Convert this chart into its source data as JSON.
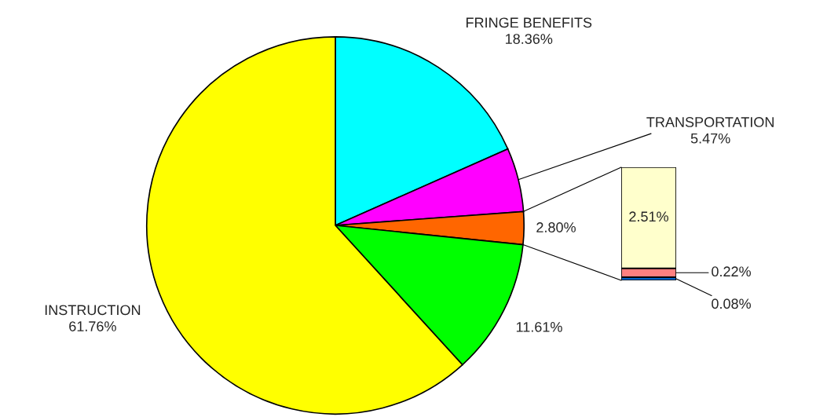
{
  "chart_data": [
    {
      "type": "pie",
      "categories": [
        "FRINGE BENEFITS",
        "TRANSPORTATION",
        null,
        null,
        "INSTRUCTION"
      ],
      "values": [
        18.36,
        5.47,
        2.8,
        11.61,
        61.76
      ],
      "colors": [
        "#00ffff",
        "#ff00ff",
        "#ff6600",
        "#00ff00",
        "#ffff00"
      ],
      "value_labels": [
        "18.36%",
        "5.47%",
        "2.80%",
        "11.61%",
        "61.76%"
      ]
    },
    {
      "type": "bar",
      "stacked": true,
      "categories": [
        null
      ],
      "series": [
        {
          "color": "#0066cc",
          "values": [
            0.08
          ],
          "value_labels": [
            "0.08%"
          ]
        },
        {
          "color": "#ff8080",
          "values": [
            0.22
          ],
          "value_labels": [
            "0.22%"
          ]
        },
        {
          "color": "#ffffcc",
          "values": [
            2.51
          ],
          "value_labels": [
            "2.51%"
          ]
        }
      ]
    }
  ]
}
